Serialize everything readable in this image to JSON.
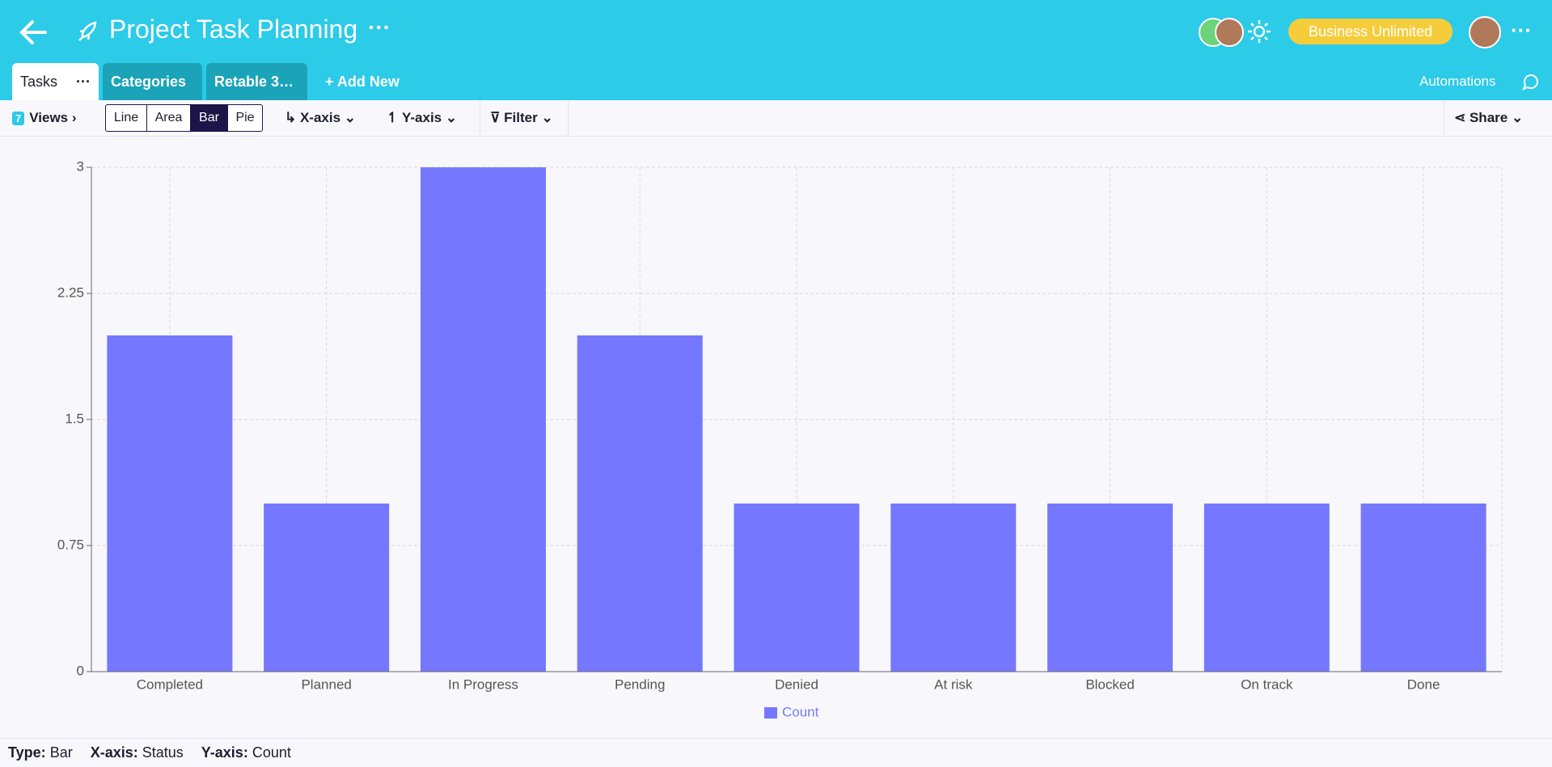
{
  "header": {
    "title": "Project Task Planning",
    "badge": "Business Unlimited"
  },
  "tabs": [
    "Tasks",
    "Categories",
    "Retable 3…"
  ],
  "add_new": "Add New",
  "automations": "Automations",
  "toolbar": {
    "views_count": "7",
    "views": "Views",
    "chart_types": [
      "Line",
      "Area",
      "Bar",
      "Pie"
    ],
    "active_chart_type": 2,
    "x_axis": "X-axis",
    "y_axis": "Y-axis",
    "filter": "Filter",
    "share": "Share"
  },
  "chart_data": {
    "type": "bar",
    "categories": [
      "Completed",
      "Planned",
      "In Progress",
      "Pending",
      "Denied",
      "At risk",
      "Blocked",
      "On track",
      "Done"
    ],
    "series": [
      {
        "name": "Count",
        "color": "#7578ff",
        "values": [
          2,
          1,
          3,
          2,
          1,
          1,
          1,
          1,
          1
        ]
      }
    ],
    "ylim": [
      0,
      3
    ],
    "yticks": [
      0,
      0.75,
      1.5,
      2.25,
      3
    ],
    "grid": true,
    "legend": "bottom"
  },
  "footer": [
    {
      "label": "Type:",
      "value": "Bar"
    },
    {
      "label": "X-axis:",
      "value": "Status"
    },
    {
      "label": "Y-axis:",
      "value": "Count"
    }
  ]
}
